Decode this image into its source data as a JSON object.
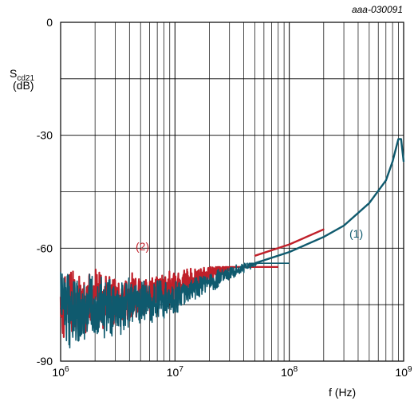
{
  "chart_data": {
    "type": "line",
    "id_label": "aaa-030091",
    "ylabel_main": "S",
    "ylabel_sub": "cd21",
    "ylabel_unit": "(dB)",
    "xlabel": "f (Hz)",
    "x_scale": "log",
    "xlim": [
      1000000,
      1000000000
    ],
    "ylim": [
      -90,
      0
    ],
    "y_ticks": [
      "0",
      "-30",
      "-60",
      "-90"
    ],
    "x_ticks": [
      {
        "base": "10",
        "exp": "6"
      },
      {
        "base": "10",
        "exp": "7"
      },
      {
        "base": "10",
        "exp": "8"
      },
      {
        "base": "10",
        "exp": "9"
      }
    ],
    "grid": true,
    "series": [
      {
        "name": "(2)",
        "color": "#c0202a",
        "noise_band": {
          "x_start": 1000000,
          "x_end": 80000000,
          "y_low": -88,
          "y_high": -65
        },
        "x": [
          1000000,
          2000000,
          5000000,
          10000000,
          20000000,
          50000000,
          100000000,
          200000000
        ],
        "y": [
          -75,
          -74,
          -73,
          -70,
          -67,
          -62,
          -59,
          -55
        ]
      },
      {
        "name": "(1)",
        "color": "#0f5a6e",
        "noise_band": {
          "x_start": 1000000,
          "x_end": 100000000,
          "y_low": -89,
          "y_high": -64
        },
        "x": [
          1000000,
          2000000,
          5000000,
          10000000,
          20000000,
          50000000,
          100000000,
          200000000,
          300000000,
          500000000,
          700000000,
          800000000,
          900000000,
          950000000,
          1000000000
        ],
        "y": [
          -76,
          -76,
          -75,
          -73,
          -69,
          -64,
          -61,
          -57,
          -54,
          -48,
          -42,
          -37,
          -31,
          -31,
          -37
        ]
      }
    ]
  }
}
